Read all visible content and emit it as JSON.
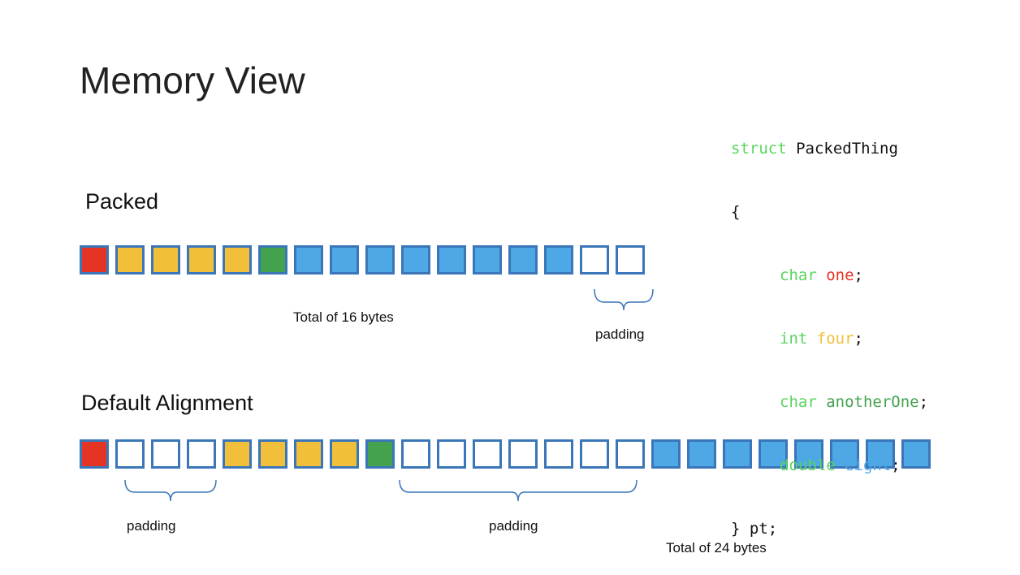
{
  "title": "Memory View",
  "packed": {
    "label": "Packed",
    "bytes": [
      "red",
      "yellow",
      "yellow",
      "yellow",
      "yellow",
      "green",
      "blue",
      "blue",
      "blue",
      "blue",
      "blue",
      "blue",
      "blue",
      "blue",
      "white",
      "white"
    ],
    "total_label": "Total of 16 bytes",
    "padding_label": "padding"
  },
  "default_alignment": {
    "label": "Default Alignment",
    "bytes": [
      "red",
      "white",
      "white",
      "white",
      "yellow",
      "yellow",
      "yellow",
      "yellow",
      "green",
      "white",
      "white",
      "white",
      "white",
      "white",
      "white",
      "white",
      "blue",
      "blue",
      "blue",
      "blue",
      "blue",
      "blue",
      "blue",
      "blue"
    ],
    "padding_labels": [
      "padding",
      "padding"
    ],
    "total_label": "Total of 24 bytes"
  },
  "code": {
    "struct_kw": "struct",
    "struct_name": "PackedThing",
    "open_brace": "{",
    "fields": [
      {
        "type": "char",
        "name": "one",
        "color": "#e53324"
      },
      {
        "type": "int",
        "name": "four",
        "color": "#f2bf3a"
      },
      {
        "type": "char",
        "name": "anotherOne",
        "color": "#44a24f"
      },
      {
        "type": "double",
        "name": "eight",
        "color": "#4ea8e6"
      }
    ],
    "semicolon": ";",
    "close": "} pt;"
  },
  "colors": {
    "red": "#e53324",
    "yellow": "#f2bf3a",
    "green": "#44a24f",
    "blue": "#4ea8e6",
    "border": "#3a76b8",
    "keyword": "#5ad45f"
  }
}
